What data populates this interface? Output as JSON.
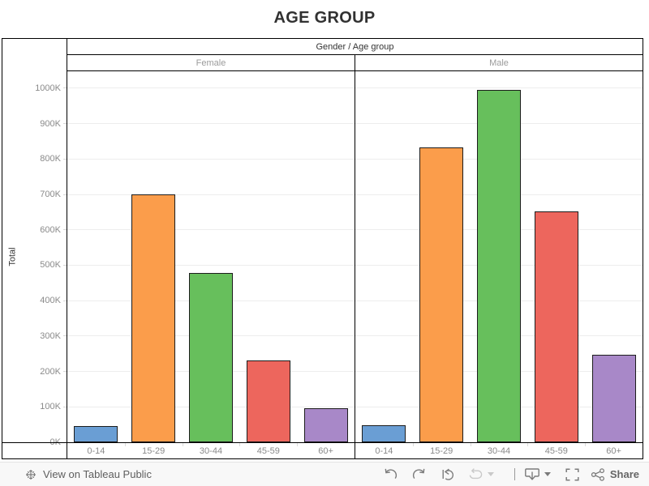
{
  "title": "AGE GROUP",
  "chart_data": {
    "type": "bar",
    "title": "AGE GROUP",
    "column_header": "Gender  /  Age group",
    "ylabel": "Total",
    "categories": [
      "0-14",
      "15-29",
      "30-44",
      "45-59",
      "60+"
    ],
    "series": [
      {
        "name": "Female",
        "values": [
          45000,
          700000,
          478000,
          231000,
          96000
        ]
      },
      {
        "name": "Male",
        "values": [
          47000,
          833000,
          995000,
          653000,
          247000
        ]
      }
    ],
    "bar_colors": [
      "#6a9ed4",
      "#fb9d4b",
      "#67bf5c",
      "#ed665d",
      "#a888c8"
    ],
    "yticks": [
      "0K",
      "100K",
      "200K",
      "300K",
      "400K",
      "500K",
      "600K",
      "700K",
      "800K",
      "900K",
      "1000K"
    ],
    "ytick_interval": 100000,
    "ylim": [
      0,
      1048000
    ],
    "grid": true,
    "legend": "none"
  },
  "footer": {
    "view_on_label": "View on Tableau Public",
    "share_label": "Share",
    "icons": [
      "tableau-logo",
      "undo",
      "redo",
      "revert",
      "refresh",
      "caret-down",
      "divider",
      "download-device",
      "caret-down",
      "fullscreen",
      "share"
    ]
  },
  "colors": {
    "table_border": "#000000",
    "gridline": "#ededed",
    "tick_text": "#8a8a8a",
    "header_text": "#333333",
    "subheader_text": "#9b9b9b",
    "bar_outline": "#1c1c1c",
    "footer_bg": "#f8f8f8",
    "footer_text": "#5e5e5e"
  }
}
